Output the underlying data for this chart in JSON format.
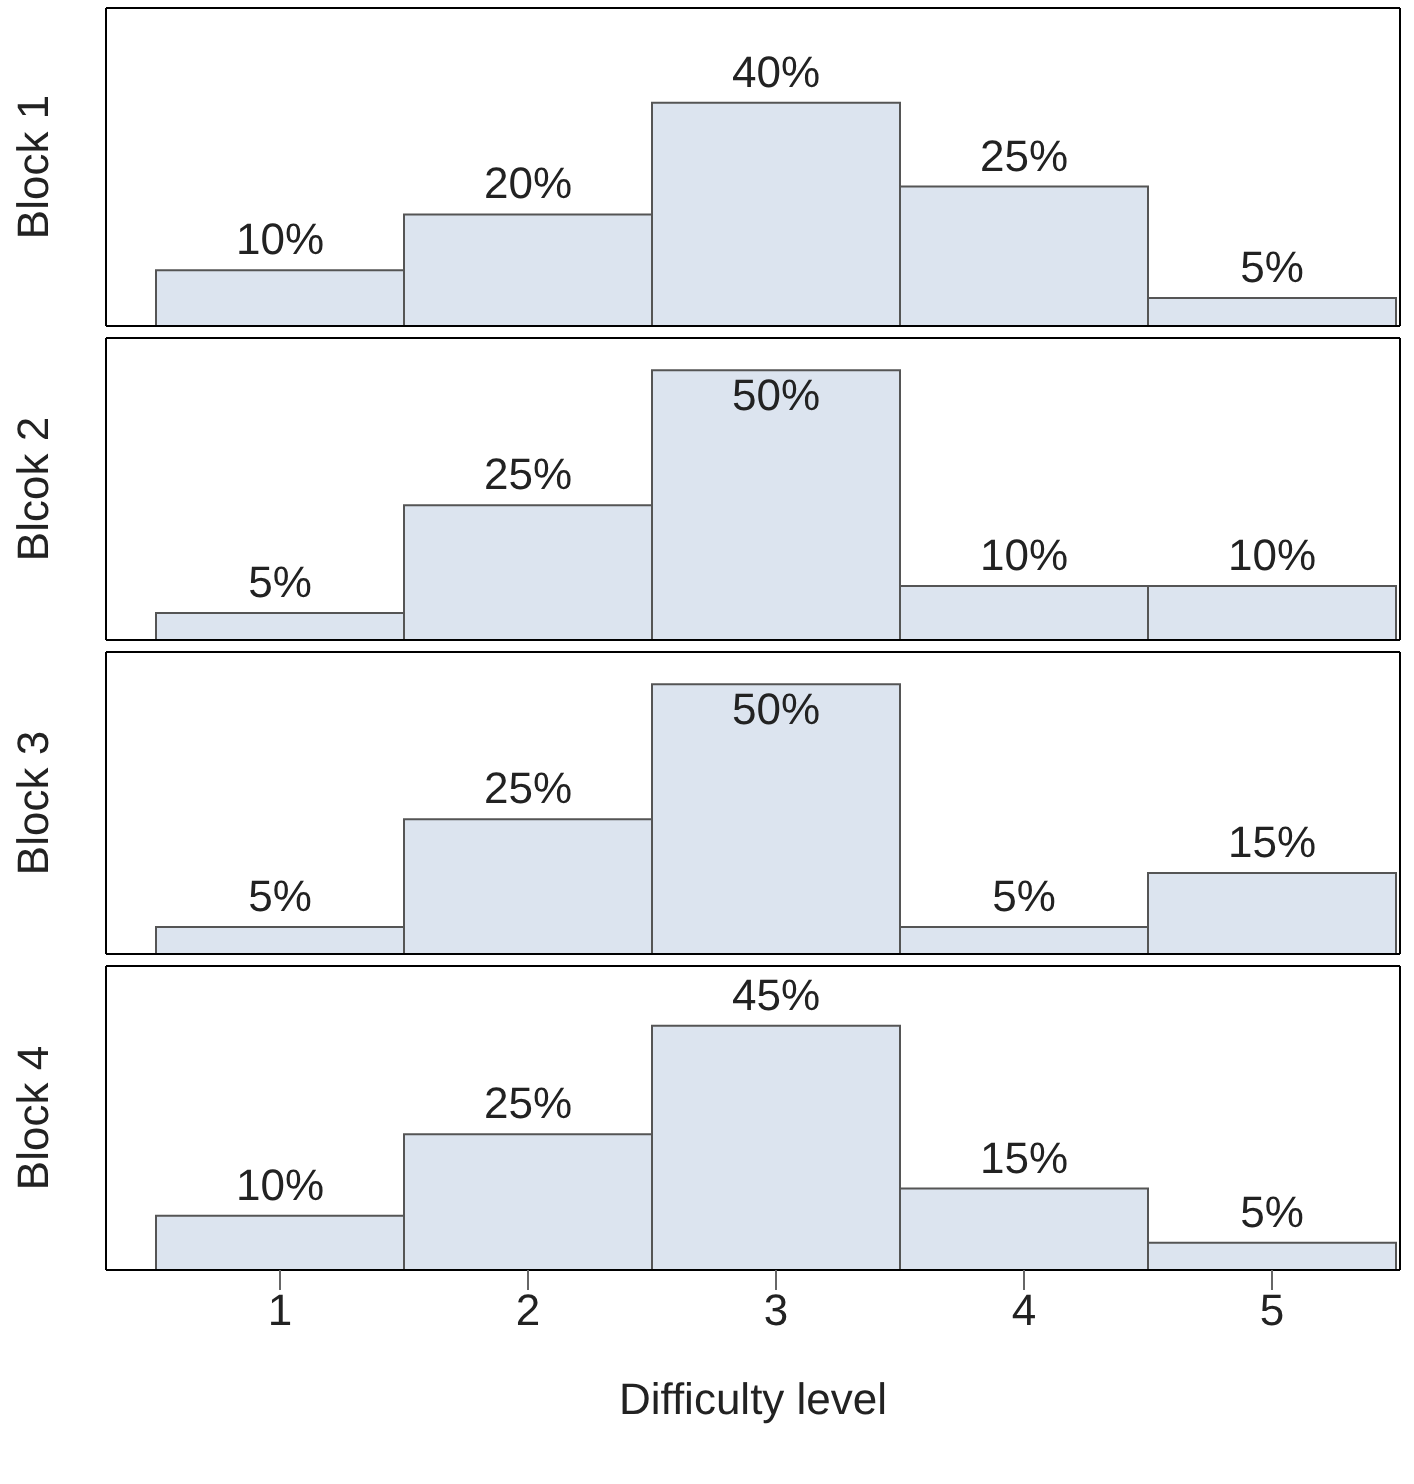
{
  "chart_data": [
    {
      "type": "bar",
      "ylabel": "Block 1",
      "categories": [
        "1",
        "2",
        "3",
        "4",
        "5"
      ],
      "values": [
        10,
        20,
        40,
        25,
        5
      ],
      "value_labels": [
        "10%",
        "20%",
        "40%",
        "25%",
        "5%"
      ],
      "color": "#dce4ef",
      "ylim": [
        0,
        57
      ],
      "tick_labels": false
    },
    {
      "type": "bar",
      "ylabel": "Blcok 2",
      "categories": [
        "1",
        "2",
        "3",
        "4",
        "5"
      ],
      "values": [
        5,
        25,
        50,
        10,
        10
      ],
      "value_labels": [
        "5%",
        "25%",
        "50%",
        "10%",
        "10%"
      ],
      "color": "#dce4ef",
      "ylim": [
        0,
        56
      ],
      "tick_labels": false
    },
    {
      "type": "bar",
      "ylabel": "Block 3",
      "categories": [
        "1",
        "2",
        "3",
        "4",
        "5"
      ],
      "values": [
        5,
        25,
        50,
        5,
        15
      ],
      "value_labels": [
        "5%",
        "25%",
        "50%",
        "5%",
        "15%"
      ],
      "color": "#dce4ef",
      "ylim": [
        0,
        56
      ],
      "tick_labels": false
    },
    {
      "type": "bar",
      "ylabel": "Block 4",
      "xlabel": "Difficulty level",
      "categories": [
        "1",
        "2",
        "3",
        "4",
        "5"
      ],
      "values": [
        10,
        25,
        45,
        15,
        5
      ],
      "value_labels": [
        "10%",
        "25%",
        "45%",
        "15%",
        "5%"
      ],
      "color": "#dce4ef",
      "ylim": [
        0,
        56
      ],
      "tick_labels": "x"
    }
  ]
}
